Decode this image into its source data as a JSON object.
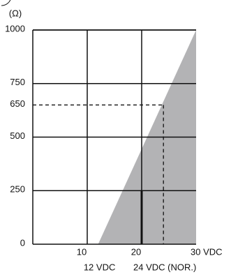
{
  "chart_data": {
    "type": "region",
    "y_label": "(Ω)",
    "xlim": [
      0,
      30
    ],
    "ylim": [
      0,
      1000
    ],
    "xticks": [
      10,
      20,
      {
        "value": 30,
        "label": "30 VDC"
      }
    ],
    "yticks": [
      0,
      250,
      500,
      650,
      750,
      1000
    ],
    "region": {
      "x": [
        12,
        30,
        30
      ],
      "y": [
        0,
        1000,
        0
      ],
      "color": "#b3b3b5"
    },
    "reference": {
      "x": 24,
      "y": 650
    },
    "marker_line": {
      "x": 20,
      "y": [
        0,
        250
      ]
    },
    "annotations": [
      {
        "text": "12 VDC",
        "x": 12
      },
      {
        "text": "24 VDC (NOR.)",
        "x": 24
      }
    ],
    "grid": true
  }
}
